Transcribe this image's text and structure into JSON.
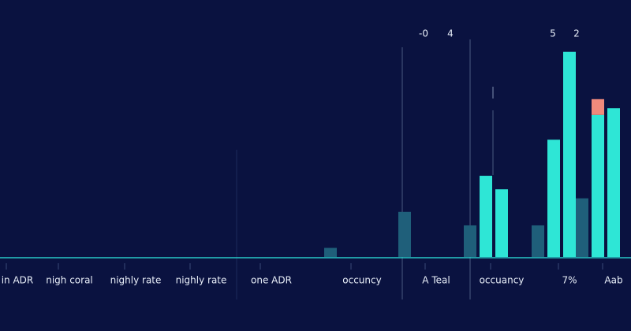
{
  "chart_data": {
    "type": "bar",
    "annotations": [
      "-0",
      "4",
      "5",
      "2"
    ],
    "categories": [
      "in ADR",
      "nigh coral",
      "nighly rate",
      "nighly rate",
      "one ADR",
      "occuncy",
      "A Teal",
      "occuancy",
      "7%",
      "Aab"
    ],
    "series": [
      {
        "color": "#1f5f7a",
        "values": [
          null,
          null,
          null,
          null,
          null,
          4,
          20,
          14,
          14,
          26
        ]
      },
      {
        "color": "#2ee6d6",
        "values": [
          null,
          null,
          null,
          null,
          null,
          null,
          null,
          36,
          52,
          63
        ]
      },
      {
        "color": "#2ee6d6",
        "values": [
          null,
          null,
          null,
          null,
          null,
          null,
          null,
          30,
          91,
          66
        ]
      },
      {
        "color": "#f08a7c",
        "stacked_on": 1,
        "values": [
          null,
          null,
          null,
          null,
          null,
          null,
          null,
          null,
          null,
          7
        ]
      }
    ],
    "ylim": [
      0,
      100
    ],
    "grid": false
  }
}
